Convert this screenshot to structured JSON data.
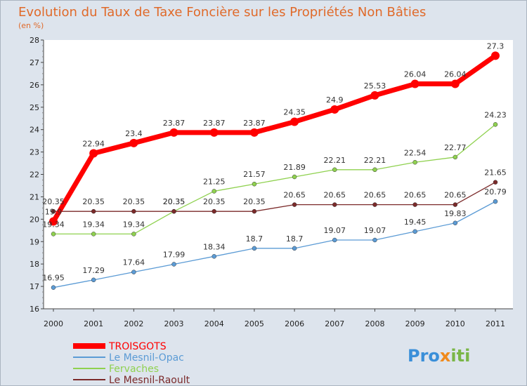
{
  "chart_data": {
    "type": "line",
    "title": "Evolution du Taux de Taxe Foncière sur les Propriétés Non Bâties",
    "subtitle": "(en %)",
    "x": [
      "2000",
      "2001",
      "2002",
      "2003",
      "2004",
      "2005",
      "2006",
      "2007",
      "2008",
      "2009",
      "2010",
      "2011"
    ],
    "ylim": [
      16,
      28
    ],
    "yticks": [
      16,
      17,
      18,
      19,
      20,
      21,
      22,
      23,
      24,
      25,
      26,
      27,
      28
    ],
    "grid": false,
    "legend_position": "bottom-left",
    "series": [
      {
        "name": "TROISGOTS",
        "color": "#ff0000",
        "values": [
          19.9,
          22.94,
          23.4,
          23.87,
          23.87,
          23.87,
          24.35,
          24.9,
          25.53,
          26.04,
          26.04,
          27.3
        ],
        "labels": [
          "19.9",
          "22.94",
          "23.4",
          "23.87",
          "23.87",
          "23.87",
          "24.35",
          "24.9",
          "25.53",
          "26.04",
          "26.04",
          "27.3"
        ]
      },
      {
        "name": "Le Mesnil-Opac",
        "color": "#5b9bd5",
        "values": [
          16.95,
          17.29,
          17.64,
          17.99,
          18.34,
          18.7,
          18.7,
          19.07,
          19.07,
          19.45,
          19.83,
          20.79
        ],
        "labels": [
          "16.95",
          "17.29",
          "17.64",
          "17.99",
          "18.34",
          "18.7",
          "18.7",
          "19.07",
          "19.07",
          "19.45",
          "19.83",
          "20.79"
        ]
      },
      {
        "name": "Fervaches",
        "color": "#8fd14f",
        "values": [
          19.34,
          19.34,
          19.34,
          20.35,
          21.25,
          21.57,
          21.89,
          22.21,
          22.21,
          22.54,
          22.77,
          24.23
        ],
        "labels": [
          "19.34",
          "19.34",
          "19.34",
          "20.35",
          "21.25",
          "21.57",
          "21.89",
          "22.21",
          "22.21",
          "22.54",
          "22.77",
          "24.23"
        ]
      },
      {
        "name": "Le Mesnil-Raoult",
        "color": "#7b2a2a",
        "values": [
          20.35,
          20.35,
          20.35,
          20.35,
          20.35,
          20.35,
          20.65,
          20.65,
          20.65,
          20.65,
          20.65,
          21.65
        ],
        "labels": [
          "20.35",
          "20.35",
          "20.35",
          "20.35",
          "20.35",
          "20.35",
          "20.65",
          "20.65",
          "20.65",
          "20.65",
          "20.65",
          "21.65"
        ]
      }
    ]
  },
  "brand": {
    "p1": "Pro",
    "x": "x",
    "p2": "iti"
  }
}
